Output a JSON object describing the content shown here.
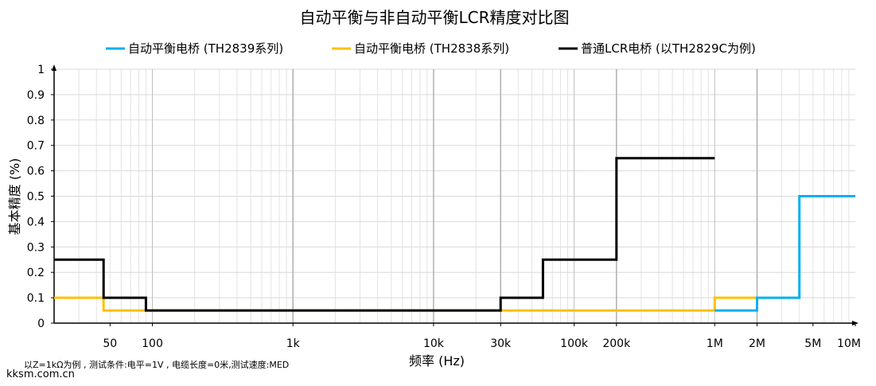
{
  "chart_data": {
    "type": "line",
    "title": "自动平衡与非自动平衡LCR精度对比图",
    "xlabel": "频率 (Hz)",
    "ylabel": "基本精度 (%)",
    "xscale": "log",
    "xlim": [
      20,
      10000000
    ],
    "ylim": [
      0,
      1
    ],
    "grid": true,
    "legend_position": "top",
    "x_ticks": [
      {
        "value": 50,
        "label": "50"
      },
      {
        "value": 100,
        "label": "100"
      },
      {
        "value": 1000,
        "label": "1k"
      },
      {
        "value": 10000,
        "label": "10k"
      },
      {
        "value": 30000,
        "label": "30k"
      },
      {
        "value": 100000,
        "label": "100k"
      },
      {
        "value": 200000,
        "label": "200k"
      },
      {
        "value": 1000000,
        "label": "1M"
      },
      {
        "value": 2000000,
        "label": "2M"
      },
      {
        "value": 5000000,
        "label": "5M"
      },
      {
        "value": 10000000,
        "label": "10M"
      }
    ],
    "y_ticks": [
      {
        "value": 0,
        "label": "0"
      },
      {
        "value": 0.1,
        "label": "0.1"
      },
      {
        "value": 0.2,
        "label": "0.2"
      },
      {
        "value": 0.3,
        "label": "0.3"
      },
      {
        "value": 0.4,
        "label": "0.4"
      },
      {
        "value": 0.5,
        "label": "0.5"
      },
      {
        "value": 0.6,
        "label": "0.6"
      },
      {
        "value": 0.7,
        "label": "0.7"
      },
      {
        "value": 0.8,
        "label": "0.8"
      },
      {
        "value": 0.9,
        "label": "0.9"
      },
      {
        "value": 1,
        "label": "1"
      }
    ],
    "series": [
      {
        "name": "自动平衡电桥 (TH2838系列)",
        "color": "#FFC000",
        "x": [
          20,
          45,
          45,
          30000,
          1000000,
          1000000,
          2000000
        ],
        "y": [
          0.1,
          0.1,
          0.05,
          0.05,
          0.05,
          0.1,
          0.1
        ]
      },
      {
        "name": "自动平衡电桥 (TH2839系列)",
        "color": "#00B0F0",
        "x": [
          1000000,
          2000000,
          2000000,
          4000000,
          4000000,
          10000000
        ],
        "y": [
          0.05,
          0.05,
          0.1,
          0.1,
          0.5,
          0.5
        ]
      },
      {
        "name": "普通LCR电桥 (以TH2829C为例)",
        "color": "#000000",
        "x": [
          20,
          45,
          45,
          90,
          90,
          30000,
          30000,
          60000,
          60000,
          200000,
          200000,
          1000000
        ],
        "y": [
          0.25,
          0.25,
          0.1,
          0.1,
          0.05,
          0.05,
          0.1,
          0.1,
          0.25,
          0.25,
          0.65,
          0.65
        ]
      }
    ],
    "legend": [
      {
        "label": "自动平衡电桥 (TH2839系列)",
        "color": "#00B0F0"
      },
      {
        "label": "自动平衡电桥 (TH2838系列)",
        "color": "#FFC000"
      },
      {
        "label": "普通LCR电桥 (以TH2829C为例)",
        "color": "#000000"
      }
    ],
    "footnote": "以Z=1kΩ为例 , 测试条件:电平=1V , 电缆长度=0米,测试速度:MED",
    "watermark": "kksm.com.cn"
  }
}
